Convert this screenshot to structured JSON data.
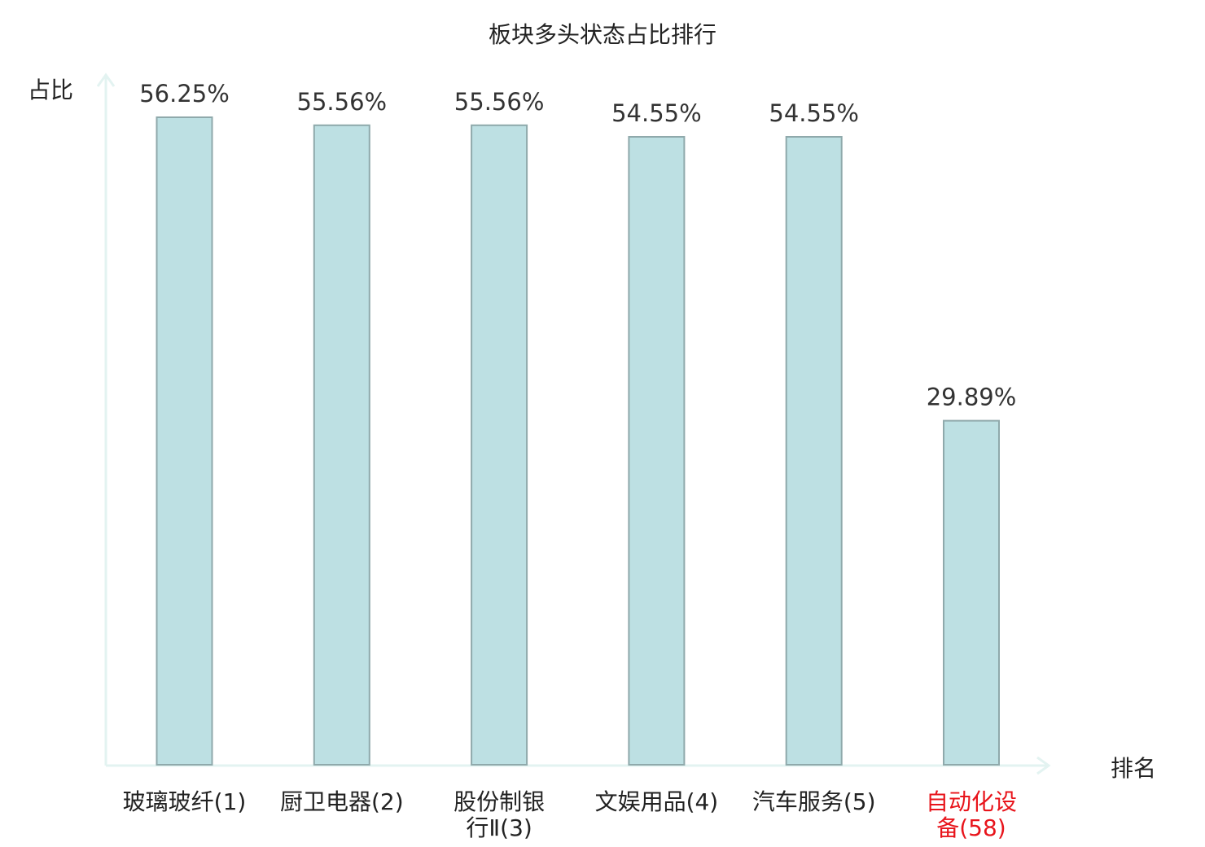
{
  "chart_data": {
    "type": "bar",
    "title": "板块多头状态占比排行",
    "xlabel": "排名",
    "ylabel": "占比",
    "ylim": [
      0,
      60
    ],
    "grid": false,
    "categories": [
      {
        "label": [
          "玻璃玻纤(1)"
        ],
        "highlight": false
      },
      {
        "label": [
          "厨卫电器(2)"
        ],
        "highlight": false
      },
      {
        "label": [
          "股份制银",
          "行Ⅱ(3)"
        ],
        "highlight": false
      },
      {
        "label": [
          "文娱用品(4)"
        ],
        "highlight": false
      },
      {
        "label": [
          "汽车服务(5)"
        ],
        "highlight": false
      },
      {
        "label": [
          "自动化设",
          "备(58)"
        ],
        "highlight": true
      }
    ],
    "values": [
      56.25,
      55.56,
      55.56,
      54.55,
      54.55,
      29.89
    ],
    "value_labels": [
      "56.25%",
      "55.56%",
      "55.56%",
      "54.55%",
      "54.55%",
      "29.89%"
    ]
  },
  "colors": {
    "bar_fill": "#bde0e3",
    "bar_stroke": "#8fa9ab",
    "axis": "#e3f3f1",
    "text": "#222222",
    "value_text": "#333333",
    "highlight": "#e8141b"
  }
}
